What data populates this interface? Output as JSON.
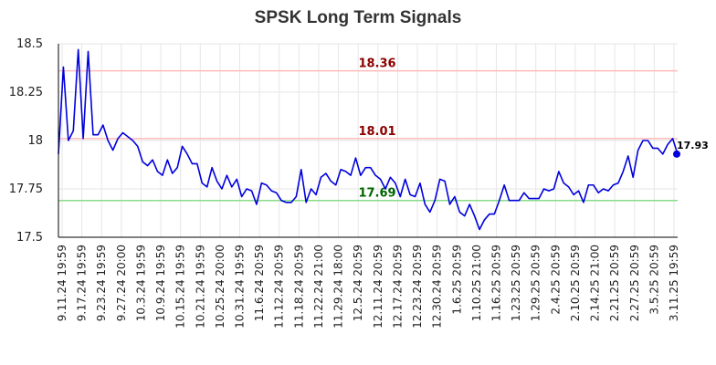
{
  "chart_data": {
    "type": "line",
    "title": "SPSK Long Term Signals",
    "xlabel": "",
    "ylabel": "",
    "ylim": [
      17.5,
      18.5
    ],
    "yticks": [
      "17.5",
      "17.75",
      "18",
      "18.25",
      "18.5"
    ],
    "xtick_labels": [
      "9.11.24 19:59",
      "9.17.24 19:59",
      "9.23.24 19:59",
      "9.27.24 20:00",
      "10.3.24 19:59",
      "10.9.24 19:59",
      "10.15.24 19:59",
      "10.21.24 19:59",
      "10.25.24 20:00",
      "10.31.24 19:59",
      "11.6.24 20:59",
      "11.12.24 20:59",
      "11.18.24 20:59",
      "11.22.24 21:00",
      "11.29.24 18:00",
      "12.5.24 20:59",
      "12.11.24 20:59",
      "12.17.24 20:59",
      "12.23.24 20:59",
      "12.30.24 20:59",
      "1.6.25 20:59",
      "1.10.25 21:00",
      "1.16.25 20:59",
      "1.23.25 20:59",
      "1.29.25 20:59",
      "2.4.25 20:59",
      "2.10.25 20:59",
      "2.14.25 21:00",
      "2.21.25 20:59",
      "2.27.25 20:59",
      "3.5.25 20:59",
      "3.11.25 19:59"
    ],
    "grid": true,
    "series": [
      {
        "color": "#0000dd",
        "values": [
          17.93,
          18.38,
          18.0,
          18.05,
          18.47,
          18.01,
          18.46,
          18.03,
          18.03,
          18.08,
          18.0,
          17.95,
          18.01,
          18.04,
          18.02,
          18.0,
          17.97,
          17.89,
          17.87,
          17.9,
          17.84,
          17.82,
          17.9,
          17.83,
          17.86,
          17.97,
          17.93,
          17.88,
          17.88,
          17.78,
          17.76,
          17.86,
          17.79,
          17.75,
          17.82,
          17.76,
          17.8,
          17.71,
          17.75,
          17.74,
          17.67,
          17.78,
          17.77,
          17.74,
          17.73,
          17.69,
          17.68,
          17.68,
          17.71,
          17.85,
          17.68,
          17.75,
          17.72,
          17.81,
          17.83,
          17.79,
          17.77,
          17.85,
          17.84,
          17.82,
          17.91,
          17.82,
          17.86,
          17.86,
          17.82,
          17.8,
          17.75,
          17.81,
          17.78,
          17.71,
          17.8,
          17.72,
          17.71,
          17.78,
          17.67,
          17.63,
          17.69,
          17.8,
          17.79,
          17.67,
          17.71,
          17.63,
          17.61,
          17.67,
          17.61,
          17.54,
          17.59,
          17.62,
          17.62,
          17.69,
          17.77,
          17.69,
          17.69,
          17.69,
          17.73,
          17.7,
          17.7,
          17.7,
          17.75,
          17.74,
          17.75,
          17.84,
          17.78,
          17.76,
          17.72,
          17.74,
          17.68,
          17.77,
          17.77,
          17.73,
          17.75,
          17.74,
          17.77,
          17.78,
          17.84,
          17.92,
          17.81,
          17.95,
          18.0,
          18.0,
          17.96,
          17.96,
          17.93,
          17.98,
          18.01,
          17.93
        ]
      }
    ],
    "hlines": [
      {
        "value": 18.36,
        "label": "18.36",
        "color": "#ffbbbb",
        "label_color": "#8b0000"
      },
      {
        "value": 18.01,
        "label": "18.01",
        "color": "#ffbbbb",
        "label_color": "#8b0000"
      },
      {
        "value": 17.69,
        "label": "17.69",
        "color": "#88dd88",
        "label_color": "#006400"
      }
    ],
    "last_point": {
      "value": 17.93,
      "label": "17.93"
    }
  }
}
